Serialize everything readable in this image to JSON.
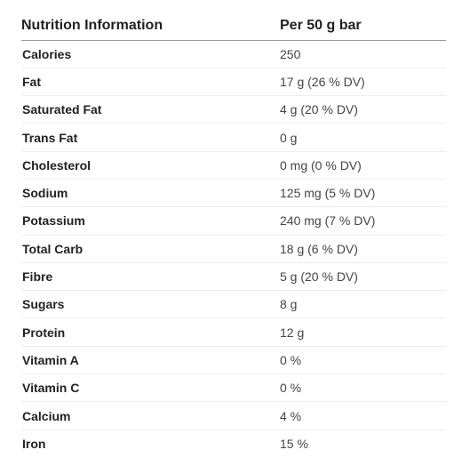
{
  "table": {
    "header": {
      "nutrient": "Nutrition Information",
      "amount": "Per 50 g bar"
    },
    "rows": [
      {
        "nutrient": "Calories",
        "amount": "250"
      },
      {
        "nutrient": "Fat",
        "amount": "17 g (26 % DV)"
      },
      {
        "nutrient": "Saturated Fat",
        "amount": "4 g (20 % DV)"
      },
      {
        "nutrient": "Trans Fat",
        "amount": "0 g"
      },
      {
        "nutrient": "Cholesterol",
        "amount": "0 mg (0 % DV)"
      },
      {
        "nutrient": "Sodium",
        "amount": "125 mg (5 % DV)"
      },
      {
        "nutrient": "Potassium",
        "amount": "240 mg (7 % DV)"
      },
      {
        "nutrient": "Total Carb",
        "amount": "18 g (6 % DV)"
      },
      {
        "nutrient": "Fibre",
        "amount": "5 g (20 % DV)"
      },
      {
        "nutrient": "Sugars",
        "amount": "8 g"
      },
      {
        "nutrient": "Protein",
        "amount": "12 g"
      },
      {
        "nutrient": "Vitamin A",
        "amount": "0 %"
      },
      {
        "nutrient": "Vitamin C",
        "amount": "0 %"
      },
      {
        "nutrient": "Calcium",
        "amount": "4 %"
      },
      {
        "nutrient": "Iron",
        "amount": "15 %"
      }
    ]
  }
}
